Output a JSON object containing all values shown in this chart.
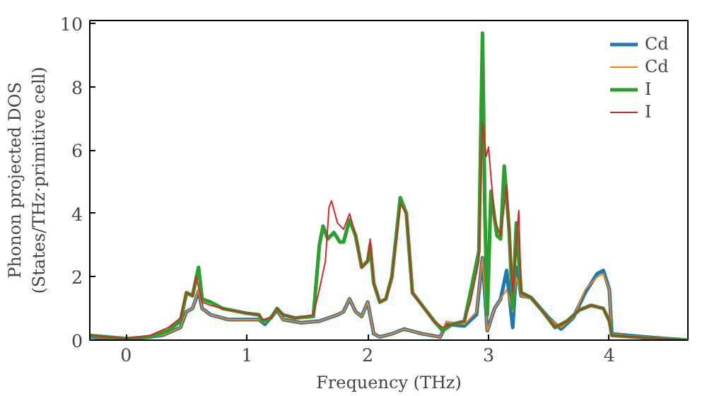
{
  "chart_data": {
    "type": "line",
    "xlabel": "Frequency (THz)",
    "ylabel": "Phonon projected DOS\n(States/THz·primitive cell)",
    "xlim": [
      -0.3,
      4.65
    ],
    "ylim": [
      0,
      10.1
    ],
    "xticks": [
      0,
      1,
      2,
      3,
      4
    ],
    "yticks": [
      0,
      2,
      4,
      6,
      8,
      10
    ],
    "legend": "top right",
    "grid": false,
    "series": [
      {
        "name": "Cd",
        "color": "#1f77b4",
        "x": [
          -0.3,
          0,
          0.3,
          0.45,
          0.5,
          0.55,
          0.6,
          0.63,
          0.7,
          0.85,
          1.0,
          1.1,
          1.15,
          1.25,
          1.3,
          1.45,
          1.6,
          1.75,
          1.8,
          1.85,
          1.9,
          1.95,
          2.0,
          2.05,
          2.1,
          2.2,
          2.3,
          2.45,
          2.6,
          2.65,
          2.8,
          2.9,
          2.95,
          2.99,
          3.05,
          3.1,
          3.15,
          3.2,
          3.23,
          3.27,
          3.35,
          3.5,
          3.6,
          3.7,
          3.8,
          3.9,
          3.95,
          4.0,
          4.02,
          4.3,
          4.65
        ],
        "values": [
          0.1,
          0.02,
          0.15,
          0.4,
          0.9,
          1.0,
          1.55,
          1.0,
          0.8,
          0.65,
          0.65,
          0.65,
          0.5,
          0.95,
          0.65,
          0.55,
          0.6,
          0.8,
          0.9,
          1.3,
          0.9,
          0.75,
          1.2,
          0.2,
          0.1,
          0.2,
          0.35,
          0.2,
          0.1,
          0.5,
          0.45,
          0.8,
          2.6,
          0.3,
          1.0,
          1.3,
          2.2,
          0.4,
          2.3,
          1.4,
          1.35,
          0.7,
          0.35,
          0.7,
          1.5,
          2.1,
          2.2,
          1.6,
          0.2,
          0.1,
          0
        ]
      },
      {
        "name": "Cd",
        "color": "#ff7f0e",
        "x": [
          -0.3,
          0,
          0.3,
          0.45,
          0.5,
          0.55,
          0.6,
          0.63,
          0.7,
          0.85,
          1.0,
          1.1,
          1.15,
          1.25,
          1.3,
          1.45,
          1.6,
          1.75,
          1.8,
          1.85,
          1.9,
          1.95,
          2.0,
          2.05,
          2.1,
          2.2,
          2.3,
          2.45,
          2.6,
          2.65,
          2.8,
          2.9,
          2.95,
          2.99,
          3.05,
          3.1,
          3.15,
          3.2,
          3.23,
          3.27,
          3.35,
          3.5,
          3.6,
          3.7,
          3.8,
          3.9,
          3.95,
          4.0,
          4.02,
          4.3,
          4.65
        ],
        "values": [
          0.1,
          0.02,
          0.15,
          0.4,
          0.9,
          1.0,
          1.6,
          1.0,
          0.8,
          0.65,
          0.65,
          0.65,
          0.55,
          0.95,
          0.65,
          0.55,
          0.6,
          0.8,
          0.9,
          1.3,
          0.9,
          0.75,
          1.2,
          0.2,
          0.1,
          0.2,
          0.35,
          0.2,
          0.1,
          0.6,
          0.5,
          0.9,
          2.6,
          0.3,
          1.0,
          1.3,
          1.6,
          0.9,
          2.0,
          1.4,
          1.3,
          0.7,
          0.4,
          0.7,
          1.6,
          2.0,
          2.1,
          1.6,
          0.2,
          0.1,
          0
        ]
      },
      {
        "name": "I",
        "color": "#2ca02c",
        "x": [
          -0.3,
          0,
          0.2,
          0.35,
          0.45,
          0.5,
          0.55,
          0.6,
          0.63,
          0.7,
          0.8,
          1.0,
          1.1,
          1.13,
          1.2,
          1.25,
          1.3,
          1.4,
          1.55,
          1.6,
          1.63,
          1.67,
          1.72,
          1.77,
          1.8,
          1.85,
          1.9,
          1.95,
          2.0,
          2.02,
          2.05,
          2.1,
          2.15,
          2.2,
          2.27,
          2.32,
          2.37,
          2.45,
          2.55,
          2.62,
          2.7,
          2.8,
          2.85,
          2.92,
          2.95,
          2.97,
          2.99,
          3.02,
          3.07,
          3.1,
          3.13,
          3.17,
          3.2,
          3.23,
          3.27,
          3.35,
          3.45,
          3.55,
          3.65,
          3.75,
          3.85,
          3.95,
          4.0,
          4.02,
          4.2,
          4.4,
          4.65
        ],
        "values": [
          0.15,
          0.05,
          0.1,
          0.3,
          0.6,
          1.5,
          1.4,
          2.3,
          1.3,
          1.2,
          1.0,
          0.85,
          0.8,
          0.6,
          0.7,
          1.0,
          0.8,
          0.7,
          0.75,
          3.0,
          3.6,
          3.2,
          3.4,
          3.1,
          3.1,
          3.8,
          3.3,
          2.3,
          2.5,
          3.0,
          1.8,
          1.2,
          1.3,
          2.0,
          4.5,
          4.0,
          1.5,
          1.1,
          0.6,
          0.3,
          0.5,
          0.6,
          1.5,
          2.8,
          9.7,
          4.0,
          0.8,
          4.7,
          3.3,
          3.2,
          5.5,
          3.5,
          1.0,
          3.7,
          1.5,
          1.35,
          0.9,
          0.4,
          0.6,
          0.95,
          1.1,
          1.0,
          0.6,
          0.15,
          0.1,
          0.05,
          0
        ]
      },
      {
        "name": "I",
        "color": "#d62728",
        "x": [
          -0.3,
          0,
          0.2,
          0.35,
          0.45,
          0.5,
          0.55,
          0.58,
          0.63,
          0.7,
          0.8,
          1.0,
          1.1,
          1.13,
          1.2,
          1.25,
          1.3,
          1.4,
          1.55,
          1.6,
          1.65,
          1.68,
          1.7,
          1.75,
          1.8,
          1.85,
          1.9,
          1.95,
          2.0,
          2.02,
          2.05,
          2.1,
          2.15,
          2.2,
          2.27,
          2.32,
          2.37,
          2.45,
          2.55,
          2.62,
          2.7,
          2.8,
          2.85,
          2.92,
          2.95,
          2.98,
          3.0,
          3.05,
          3.1,
          3.15,
          3.2,
          3.25,
          3.27,
          3.35,
          3.45,
          3.55,
          3.65,
          3.75,
          3.85,
          3.95,
          4.0,
          4.02,
          4.2,
          4.4,
          4.65
        ],
        "values": [
          0.15,
          0.05,
          0.15,
          0.4,
          0.7,
          1.5,
          1.4,
          2.0,
          1.2,
          1.1,
          1.0,
          0.85,
          0.8,
          0.65,
          0.7,
          1.0,
          0.8,
          0.7,
          0.8,
          1.6,
          2.5,
          4.2,
          4.4,
          3.7,
          3.5,
          4.0,
          3.3,
          2.3,
          2.5,
          3.2,
          1.8,
          1.2,
          1.3,
          2.0,
          4.3,
          4.0,
          1.5,
          1.1,
          0.6,
          0.4,
          0.5,
          0.6,
          1.2,
          2.5,
          6.9,
          5.8,
          6.1,
          3.8,
          3.3,
          4.9,
          1.5,
          4.1,
          1.5,
          1.35,
          0.9,
          0.4,
          0.6,
          0.95,
          1.1,
          1.0,
          0.6,
          0.15,
          0.1,
          0.05,
          0
        ]
      }
    ]
  }
}
